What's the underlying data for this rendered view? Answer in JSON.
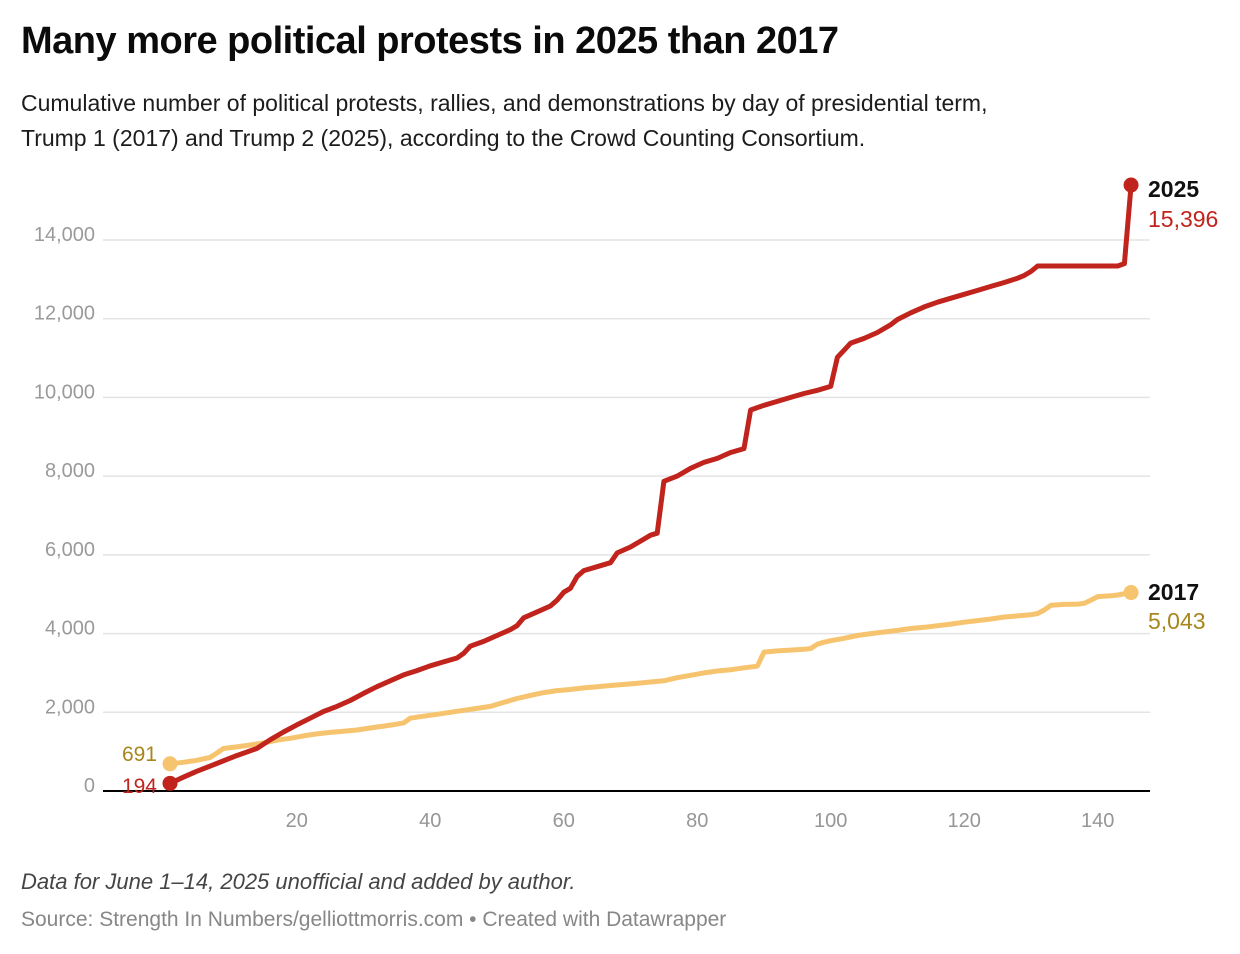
{
  "header": {
    "title": "Many more political protests in 2025 than 2017",
    "subtitle": "Cumulative number of political protests, rallies, and demonstrations by day of presidential term,\nTrump 1 (2017) and Trump 2 (2025), according to the Crowd Counting Consortium."
  },
  "footer": {
    "note": "Data for June 1–14, 2025 unofficial and added by author.",
    "source": "Source: Strength In Numbers/gelliottmorris.com • Created with Datawrapper"
  },
  "chart_data": {
    "type": "line",
    "title": "Many more political protests in 2025 than 2017",
    "xlabel": "",
    "ylabel": "",
    "grid": "horizontal",
    "legend_position": "inline-end-labels",
    "x_axis": {
      "ticks": [
        20,
        40,
        60,
        80,
        100,
        120,
        140
      ],
      "range_days": [
        1,
        145
      ],
      "tick_color": "#969696"
    },
    "y_axis": {
      "ticks": [
        {
          "value": 0,
          "label": "0"
        },
        {
          "value": 2000,
          "label": "2,000"
        },
        {
          "value": 4000,
          "label": "4,000"
        },
        {
          "value": 6000,
          "label": "6,000"
        },
        {
          "value": 8000,
          "label": "8,000"
        },
        {
          "value": 10000,
          "label": "10,000"
        },
        {
          "value": 12000,
          "label": "12,000"
        },
        {
          "value": 14000,
          "label": "14,000"
        }
      ],
      "range": [
        0,
        15600
      ],
      "tick_color": "#9a9a9a",
      "gridline_color": "#e4e4e4",
      "baseline_color": "#000000"
    },
    "series": [
      {
        "name": "2017",
        "color": "#f6c46e",
        "value_label_color": "#a8861d",
        "start_value": 691,
        "start_label": "691",
        "final_value": 5043,
        "end_label_name": "2017",
        "end_label_value": "5,043",
        "points": [
          [
            1,
            691
          ],
          [
            3,
            730
          ],
          [
            5,
            780
          ],
          [
            7,
            850
          ],
          [
            8,
            960
          ],
          [
            9,
            1080
          ],
          [
            11,
            1120
          ],
          [
            13,
            1170
          ],
          [
            15,
            1220
          ],
          [
            17,
            1290
          ],
          [
            19,
            1340
          ],
          [
            21,
            1400
          ],
          [
            23,
            1450
          ],
          [
            25,
            1490
          ],
          [
            27,
            1520
          ],
          [
            29,
            1550
          ],
          [
            31,
            1600
          ],
          [
            33,
            1650
          ],
          [
            35,
            1700
          ],
          [
            36,
            1730
          ],
          [
            37,
            1850
          ],
          [
            39,
            1900
          ],
          [
            41,
            1950
          ],
          [
            43,
            2000
          ],
          [
            45,
            2050
          ],
          [
            47,
            2100
          ],
          [
            49,
            2150
          ],
          [
            51,
            2250
          ],
          [
            53,
            2350
          ],
          [
            55,
            2430
          ],
          [
            57,
            2500
          ],
          [
            59,
            2550
          ],
          [
            61,
            2580
          ],
          [
            63,
            2620
          ],
          [
            65,
            2650
          ],
          [
            67,
            2680
          ],
          [
            70,
            2720
          ],
          [
            73,
            2770
          ],
          [
            75,
            2800
          ],
          [
            77,
            2880
          ],
          [
            79,
            2940
          ],
          [
            81,
            3000
          ],
          [
            83,
            3050
          ],
          [
            85,
            3080
          ],
          [
            87,
            3130
          ],
          [
            89,
            3170
          ],
          [
            90,
            3530
          ],
          [
            92,
            3560
          ],
          [
            94,
            3580
          ],
          [
            96,
            3600
          ],
          [
            97,
            3620
          ],
          [
            98,
            3730
          ],
          [
            99,
            3780
          ],
          [
            100,
            3820
          ],
          [
            102,
            3880
          ],
          [
            104,
            3950
          ],
          [
            106,
            4000
          ],
          [
            108,
            4040
          ],
          [
            110,
            4080
          ],
          [
            112,
            4130
          ],
          [
            114,
            4160
          ],
          [
            116,
            4200
          ],
          [
            118,
            4240
          ],
          [
            120,
            4290
          ],
          [
            122,
            4330
          ],
          [
            124,
            4370
          ],
          [
            126,
            4420
          ],
          [
            128,
            4450
          ],
          [
            130,
            4480
          ],
          [
            131,
            4510
          ],
          [
            132,
            4600
          ],
          [
            133,
            4720
          ],
          [
            135,
            4740
          ],
          [
            137,
            4750
          ],
          [
            138,
            4770
          ],
          [
            139,
            4850
          ],
          [
            140,
            4940
          ],
          [
            142,
            4960
          ],
          [
            143,
            4980
          ],
          [
            145,
            5043
          ]
        ]
      },
      {
        "name": "2025",
        "color": "#c0241c",
        "value_label_color": "#c0241c",
        "start_value": 194,
        "start_label": "194",
        "final_value": 15396,
        "end_label_name": "2025",
        "end_label_value": "15,396",
        "points": [
          [
            1,
            194
          ],
          [
            3,
            350
          ],
          [
            5,
            500
          ],
          [
            8,
            700
          ],
          [
            11,
            900
          ],
          [
            14,
            1080
          ],
          [
            16,
            1300
          ],
          [
            18,
            1500
          ],
          [
            20,
            1680
          ],
          [
            22,
            1850
          ],
          [
            24,
            2020
          ],
          [
            26,
            2150
          ],
          [
            28,
            2300
          ],
          [
            30,
            2480
          ],
          [
            32,
            2650
          ],
          [
            34,
            2800
          ],
          [
            36,
            2950
          ],
          [
            38,
            3060
          ],
          [
            40,
            3180
          ],
          [
            42,
            3280
          ],
          [
            44,
            3380
          ],
          [
            45,
            3500
          ],
          [
            46,
            3680
          ],
          [
            48,
            3800
          ],
          [
            50,
            3950
          ],
          [
            52,
            4100
          ],
          [
            53,
            4200
          ],
          [
            54,
            4400
          ],
          [
            56,
            4550
          ],
          [
            58,
            4700
          ],
          [
            59,
            4850
          ],
          [
            60,
            5050
          ],
          [
            61,
            5150
          ],
          [
            62,
            5450
          ],
          [
            63,
            5600
          ],
          [
            65,
            5700
          ],
          [
            67,
            5800
          ],
          [
            68,
            6050
          ],
          [
            70,
            6200
          ],
          [
            72,
            6400
          ],
          [
            73,
            6500
          ],
          [
            74,
            6550
          ],
          [
            75,
            7870
          ],
          [
            77,
            8000
          ],
          [
            79,
            8200
          ],
          [
            81,
            8350
          ],
          [
            83,
            8450
          ],
          [
            85,
            8600
          ],
          [
            87,
            8700
          ],
          [
            88,
            9680
          ],
          [
            90,
            9800
          ],
          [
            92,
            9900
          ],
          [
            94,
            10000
          ],
          [
            96,
            10100
          ],
          [
            98,
            10180
          ],
          [
            100,
            10280
          ],
          [
            101,
            11020
          ],
          [
            102,
            11200
          ],
          [
            103,
            11380
          ],
          [
            105,
            11500
          ],
          [
            107,
            11650
          ],
          [
            109,
            11850
          ],
          [
            110,
            11980
          ],
          [
            112,
            12150
          ],
          [
            114,
            12300
          ],
          [
            116,
            12420
          ],
          [
            118,
            12520
          ],
          [
            120,
            12620
          ],
          [
            122,
            12720
          ],
          [
            124,
            12820
          ],
          [
            126,
            12920
          ],
          [
            128,
            13030
          ],
          [
            129,
            13100
          ],
          [
            130,
            13200
          ],
          [
            131,
            13340
          ],
          [
            143,
            13340
          ],
          [
            144,
            13400
          ],
          [
            145,
            15396
          ]
        ]
      }
    ]
  }
}
